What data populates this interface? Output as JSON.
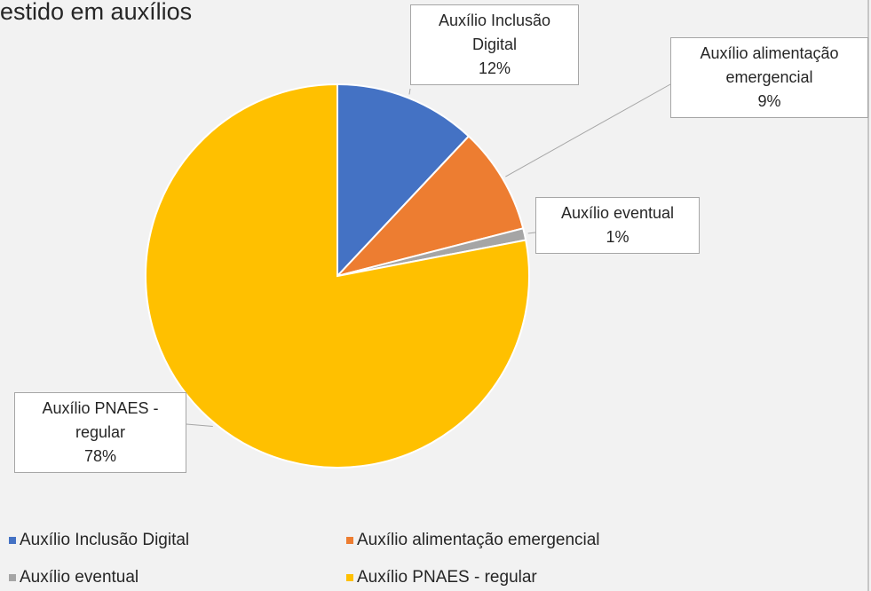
{
  "chart_data": {
    "type": "pie",
    "title": "estido em auxílios",
    "categories": [
      "Auxílio Inclusão Digital",
      "Auxílio alimentação emergencial",
      "Auxílio eventual",
      "Auxílio PNAES - regular"
    ],
    "values": [
      12,
      9,
      1,
      78
    ],
    "value_labels": [
      "12%",
      "9%",
      "1%",
      "78%"
    ],
    "colors": [
      "#4472c4",
      "#ed7d31",
      "#a5a5a5",
      "#ffc000"
    ],
    "legend": "bottom"
  }
}
